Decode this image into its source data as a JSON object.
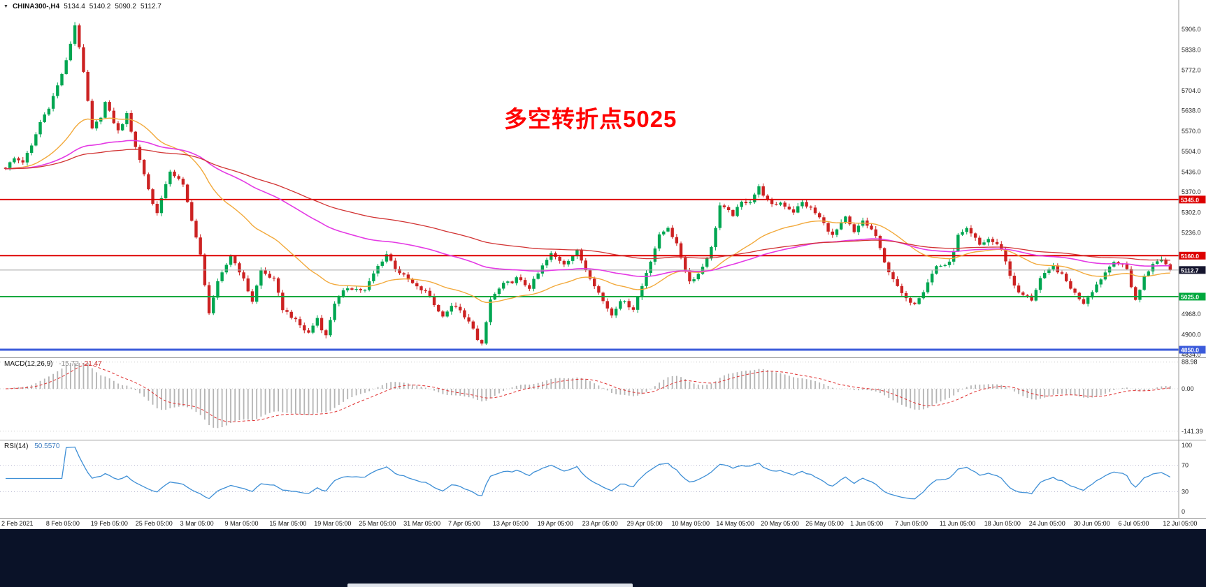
{
  "colors": {
    "candle_up": "#00a651",
    "candle_down": "#cc2222",
    "ma_fast": "#f2a93b",
    "ma_mid": "#e43ae4",
    "ma_slow": "#d23333",
    "macd_hist": "#b4b4b4",
    "macd_signal": "#e03030",
    "rsi_line": "#3e8fd6",
    "annotation": "#ff0000",
    "bottom_bar": "#0a1228"
  },
  "header": {
    "dropdown_icon": "▼",
    "symbol": "CHINA300-,H4",
    "open": "5134.4",
    "high": "5140.2",
    "low": "5090.2",
    "close": "5112.7"
  },
  "annotation": {
    "text": "多空转折点5025"
  },
  "macd": {
    "name": "MACD(12,26,9)",
    "value_main": "-15.72",
    "value_signal": "-21.47",
    "fast": 12,
    "slow": 26,
    "signal": 9,
    "axis": [
      {
        "v": 88.98,
        "t": "88.98"
      },
      {
        "v": 0,
        "t": "0.00"
      },
      {
        "v": -141.39,
        "t": "-141.39"
      }
    ]
  },
  "rsi": {
    "name": "RSI(14)",
    "value": "50.5570",
    "period": 14,
    "levels": [
      70,
      30
    ],
    "axis": [
      {
        "v": 100,
        "t": "100"
      },
      {
        "v": 70,
        "t": "70"
      },
      {
        "v": 30,
        "t": "30"
      },
      {
        "v": 0,
        "t": "0"
      }
    ]
  },
  "chart_data": {
    "type": "candlestick",
    "title": "CHINA300-,H4",
    "symbol": "CHINA300-",
    "timeframe": "H4",
    "current_ohlc": {
      "open": 5134.4,
      "high": 5140.2,
      "low": 5090.2,
      "close": 5112.7
    },
    "grid": "off",
    "ylim": [
      4834,
      5975
    ],
    "y_ticks": [
      5906,
      5838,
      5772,
      5704,
      5638,
      5570,
      5504,
      5436,
      5370,
      5302,
      5236,
      4968,
      4900,
      4834
    ],
    "price_lines": [
      {
        "value": 5345.0,
        "label": "5345.0",
        "line_color": "#dd0000",
        "badge_bg": "#dd0000",
        "width": 2
      },
      {
        "value": 5160.0,
        "label": "5160.0",
        "line_color": "#dd0000",
        "badge_bg": "#dd0000",
        "width": 2
      },
      {
        "value": 5112.7,
        "label": "5112.7",
        "line_color": "#a8a8a8",
        "badge_bg": "#15152e",
        "width": 1
      },
      {
        "value": 5025.0,
        "label": "5025.0",
        "line_color": "#00a83d",
        "badge_bg": "#00a83d",
        "width": 2
      },
      {
        "value": 4850.0,
        "label": "4850.0",
        "line_color": "#3b5bdb",
        "badge_bg": "#3b5bdb",
        "width": 3
      }
    ],
    "x_labels": [
      "2 Feb 2021",
      "8 Feb 05:00",
      "19 Feb 05:00",
      "25 Feb 05:00",
      "3 Mar 05:00",
      "9 Mar 05:00",
      "15 Mar 05:00",
      "19 Mar 05:00",
      "25 Mar 05:00",
      "31 Mar 05:00",
      "7 Apr 05:00",
      "13 Apr 05:00",
      "19 Apr 05:00",
      "23 Apr 05:00",
      "29 Apr 05:00",
      "10 May 05:00",
      "14 May 05:00",
      "20 May 05:00",
      "26 May 05:00",
      "1 Jun 05:00",
      "7 Jun 05:00",
      "11 Jun 05:00",
      "18 Jun 05:00",
      "24 Jun 05:00",
      "30 Jun 05:00",
      "6 Jul 05:00",
      "12 Jul 05:00"
    ],
    "bars_count": 270,
    "first_open": 5450,
    "close_anchors": [
      [
        0,
        5450
      ],
      [
        2,
        5480
      ],
      [
        4,
        5470
      ],
      [
        6,
        5520
      ],
      [
        8,
        5600
      ],
      [
        10,
        5650
      ],
      [
        12,
        5720
      ],
      [
        14,
        5800
      ],
      [
        16,
        5920
      ],
      [
        17,
        5850
      ],
      [
        18,
        5760
      ],
      [
        20,
        5575
      ],
      [
        22,
        5620
      ],
      [
        23,
        5665
      ],
      [
        25,
        5600
      ],
      [
        26,
        5570
      ],
      [
        28,
        5625
      ],
      [
        30,
        5520
      ],
      [
        32,
        5430
      ],
      [
        34,
        5330
      ],
      [
        35,
        5305
      ],
      [
        37,
        5390
      ],
      [
        38,
        5440
      ],
      [
        40,
        5410
      ],
      [
        41,
        5390
      ],
      [
        43,
        5280
      ],
      [
        45,
        5160
      ],
      [
        46,
        5060
      ],
      [
        47,
        4975
      ],
      [
        49,
        5070
      ],
      [
        51,
        5130
      ],
      [
        52,
        5160
      ],
      [
        54,
        5110
      ],
      [
        55,
        5080
      ],
      [
        57,
        5010
      ],
      [
        59,
        5110
      ],
      [
        61,
        5090
      ],
      [
        62,
        5080
      ],
      [
        64,
        4985
      ],
      [
        66,
        4960
      ],
      [
        67,
        4945
      ],
      [
        69,
        4915
      ],
      [
        70,
        4905
      ],
      [
        72,
        4955
      ],
      [
        73,
        4920
      ],
      [
        74,
        4895
      ],
      [
        76,
        5005
      ],
      [
        78,
        5040
      ],
      [
        79,
        5055
      ],
      [
        81,
        5050
      ],
      [
        83,
        5045
      ],
      [
        85,
        5100
      ],
      [
        86,
        5125
      ],
      [
        88,
        5165
      ],
      [
        90,
        5120
      ],
      [
        91,
        5105
      ],
      [
        93,
        5080
      ],
      [
        95,
        5055
      ],
      [
        97,
        5040
      ],
      [
        98,
        5025
      ],
      [
        100,
        4975
      ],
      [
        101,
        4965
      ],
      [
        103,
        4990
      ],
      [
        104,
        4995
      ],
      [
        106,
        4955
      ],
      [
        108,
        4925
      ],
      [
        109,
        4880
      ],
      [
        110,
        4865
      ],
      [
        111,
        4940
      ],
      [
        112,
        5015
      ],
      [
        114,
        5050
      ],
      [
        115,
        5065
      ],
      [
        117,
        5075
      ],
      [
        118,
        5085
      ],
      [
        120,
        5065
      ],
      [
        121,
        5055
      ],
      [
        123,
        5100
      ],
      [
        124,
        5125
      ],
      [
        126,
        5165
      ],
      [
        128,
        5145
      ],
      [
        129,
        5135
      ],
      [
        131,
        5160
      ],
      [
        132,
        5175
      ],
      [
        134,
        5115
      ],
      [
        136,
        5065
      ],
      [
        138,
        5010
      ],
      [
        140,
        4965
      ],
      [
        142,
        5015
      ],
      [
        144,
        4995
      ],
      [
        145,
        4985
      ],
      [
        147,
        5060
      ],
      [
        148,
        5105
      ],
      [
        150,
        5185
      ],
      [
        151,
        5225
      ],
      [
        153,
        5255
      ],
      [
        155,
        5195
      ],
      [
        156,
        5155
      ],
      [
        158,
        5075
      ],
      [
        160,
        5100
      ],
      [
        161,
        5125
      ],
      [
        163,
        5185
      ],
      [
        164,
        5255
      ],
      [
        165,
        5325
      ],
      [
        167,
        5305
      ],
      [
        168,
        5295
      ],
      [
        170,
        5335
      ],
      [
        172,
        5340
      ],
      [
        174,
        5385
      ],
      [
        176,
        5340
      ],
      [
        177,
        5325
      ],
      [
        179,
        5335
      ],
      [
        181,
        5315
      ],
      [
        182,
        5305
      ],
      [
        184,
        5335
      ],
      [
        186,
        5315
      ],
      [
        188,
        5285
      ],
      [
        189,
        5265
      ],
      [
        191,
        5225
      ],
      [
        193,
        5265
      ],
      [
        194,
        5285
      ],
      [
        196,
        5235
      ],
      [
        198,
        5275
      ],
      [
        200,
        5245
      ],
      [
        201,
        5225
      ],
      [
        203,
        5135
      ],
      [
        205,
        5085
      ],
      [
        206,
        5055
      ],
      [
        208,
        5015
      ],
      [
        210,
        5005
      ],
      [
        212,
        5045
      ],
      [
        213,
        5075
      ],
      [
        215,
        5125
      ],
      [
        217,
        5130
      ],
      [
        218,
        5135
      ],
      [
        220,
        5225
      ],
      [
        222,
        5245
      ],
      [
        224,
        5215
      ],
      [
        225,
        5195
      ],
      [
        227,
        5215
      ],
      [
        229,
        5195
      ],
      [
        230,
        5185
      ],
      [
        232,
        5095
      ],
      [
        234,
        5035
      ],
      [
        236,
        5025
      ],
      [
        237,
        5015
      ],
      [
        239,
        5085
      ],
      [
        241,
        5110
      ],
      [
        242,
        5125
      ],
      [
        244,
        5095
      ],
      [
        246,
        5055
      ],
      [
        247,
        5035
      ],
      [
        249,
        5005
      ],
      [
        251,
        5045
      ],
      [
        253,
        5085
      ],
      [
        254,
        5105
      ],
      [
        256,
        5145
      ],
      [
        258,
        5125
      ],
      [
        259,
        5115
      ],
      [
        260,
        5060
      ],
      [
        261,
        5015
      ],
      [
        262,
        5045
      ],
      [
        263,
        5095
      ],
      [
        265,
        5130
      ],
      [
        267,
        5150
      ],
      [
        269,
        5112.7
      ]
    ],
    "moving_averages": [
      {
        "period": 34,
        "color_key": "ma_fast",
        "width": 1.4
      },
      {
        "period": 89,
        "color_key": "ma_mid",
        "width": 1.6
      },
      {
        "period": 144,
        "color_key": "ma_slow",
        "width": 1.3
      }
    ]
  }
}
